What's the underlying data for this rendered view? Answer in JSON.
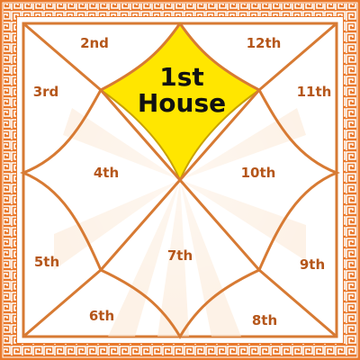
{
  "chart": {
    "highlight_house": {
      "line1": "1st",
      "line2": "House"
    },
    "houses": {
      "h2": "2nd",
      "h3": "3rd",
      "h4": "4th",
      "h5": "5th",
      "h6": "6th",
      "h7": "7th",
      "h8": "8th",
      "h9": "9th",
      "h10": "10th",
      "h11": "11th",
      "h12": "12th"
    }
  },
  "colors": {
    "border_orange": "#e9782b",
    "line_orange": "#d77a33",
    "highlight_fill": "#ffe600",
    "highlight_stroke": "#c8a000",
    "label_color": "#b5561a",
    "background": "#ffffff",
    "ray_color": "#fce8d4"
  },
  "icons": {
    "border": "greek-key-fret-border"
  }
}
